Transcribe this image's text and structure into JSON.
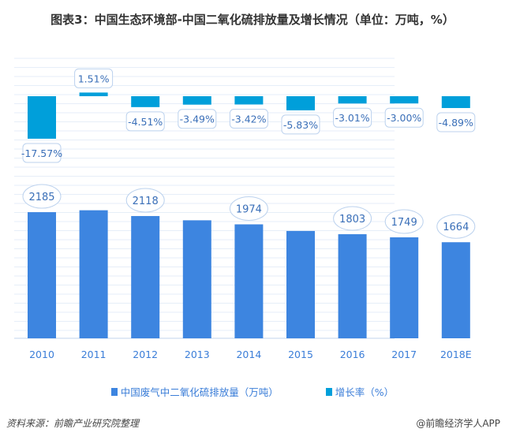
{
  "title": "图表3：中国生态环境部-中国二氧化硫排放量及增长情况（单位：万吨，%）",
  "chart_data": {
    "type": "bar",
    "title": "图表3：中国生态环境部-中国二氧化硫排放量及增长情况（单位：万吨，%）",
    "categories": [
      "2010",
      "2011",
      "2012",
      "2013",
      "2014",
      "2015",
      "2016",
      "2017",
      "2018E"
    ],
    "series": [
      {
        "name": "中国废气中二氧化硫排放量（万吨）",
        "color": "#3d85e0",
        "values": [
          2185,
          2218,
          2118,
          2044,
          1974,
          1859,
          1803,
          1749,
          1664
        ],
        "labels": [
          "2185",
          "",
          "2118",
          "",
          "1974",
          "",
          "1803",
          "1749",
          "1664"
        ]
      },
      {
        "name": "增长率（%）",
        "color": "#009fda",
        "values": [
          -17.57,
          1.51,
          -4.51,
          -3.49,
          -3.42,
          -5.83,
          -3.01,
          -3.0,
          -4.89
        ],
        "labels": [
          "-17.57%",
          "1.51%",
          "-4.51%",
          "-3.49%",
          "-3.42%",
          "-5.83%",
          "-3.01%",
          "-3.00%",
          "-4.89%"
        ]
      }
    ],
    "legend": "bottom",
    "grid": true
  },
  "source": "资料来源：前瞻产业研究院整理",
  "credit": "@前瞻经济学人APP"
}
